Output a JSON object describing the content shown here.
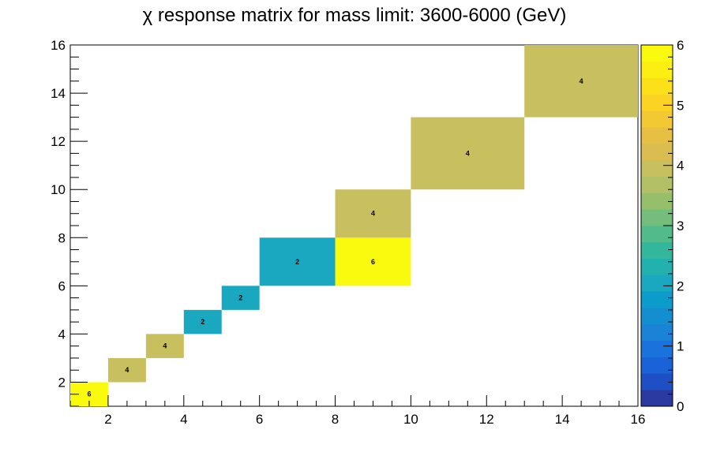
{
  "chart_data": {
    "type": "heatmap",
    "title": "χ response matrix for mass limit: 3600-6000 (GeV)",
    "xlabel": "",
    "ylabel": "",
    "xlim": [
      1,
      16
    ],
    "ylim": [
      1,
      16
    ],
    "xticks": [
      "2",
      "4",
      "6",
      "8",
      "10",
      "12",
      "14",
      "16"
    ],
    "yticks": [
      "2",
      "4",
      "6",
      "8",
      "10",
      "12",
      "14",
      "16"
    ],
    "cells": [
      {
        "x0": 1,
        "x1": 2,
        "y0": 1,
        "y1": 2,
        "value": 6,
        "label": "6"
      },
      {
        "x0": 2,
        "x1": 3,
        "y0": 2,
        "y1": 3,
        "value": 4,
        "label": "4"
      },
      {
        "x0": 3,
        "x1": 4,
        "y0": 3,
        "y1": 4,
        "value": 4,
        "label": "4"
      },
      {
        "x0": 4,
        "x1": 5,
        "y0": 4,
        "y1": 5,
        "value": 2,
        "label": "2"
      },
      {
        "x0": 5,
        "x1": 6,
        "y0": 5,
        "y1": 6,
        "value": 2,
        "label": "2"
      },
      {
        "x0": 6,
        "x1": 8,
        "y0": 6,
        "y1": 8,
        "value": 2,
        "label": "2"
      },
      {
        "x0": 8,
        "x1": 10,
        "y0": 6,
        "y1": 8,
        "value": 6,
        "label": "6"
      },
      {
        "x0": 8,
        "x1": 10,
        "y0": 8,
        "y1": 10,
        "value": 4,
        "label": "4"
      },
      {
        "x0": 10,
        "x1": 13,
        "y0": 10,
        "y1": 13,
        "value": 4,
        "label": "4"
      },
      {
        "x0": 13,
        "x1": 16,
        "y0": 13,
        "y1": 16,
        "value": 4,
        "label": "4"
      }
    ],
    "colorbar": {
      "zlim": [
        0,
        6
      ],
      "ticks": [
        "0",
        "1",
        "2",
        "3",
        "4",
        "5",
        "6"
      ],
      "palette": [
        "#2b3aa0",
        "#1e4fc4",
        "#1a62d8",
        "#1a73dc",
        "#1a83d6",
        "#138fcf",
        "#0b9ccb",
        "#1aa8c0",
        "#23b1ad",
        "#33b79c",
        "#52bb8c",
        "#75bd7a",
        "#96bf6b",
        "#b3c066",
        "#c8bf5e",
        "#dabd50",
        "#e7c043",
        "#f2c932",
        "#fad323",
        "#fde118",
        "#fbee10",
        "#f9fa0e"
      ]
    }
  }
}
